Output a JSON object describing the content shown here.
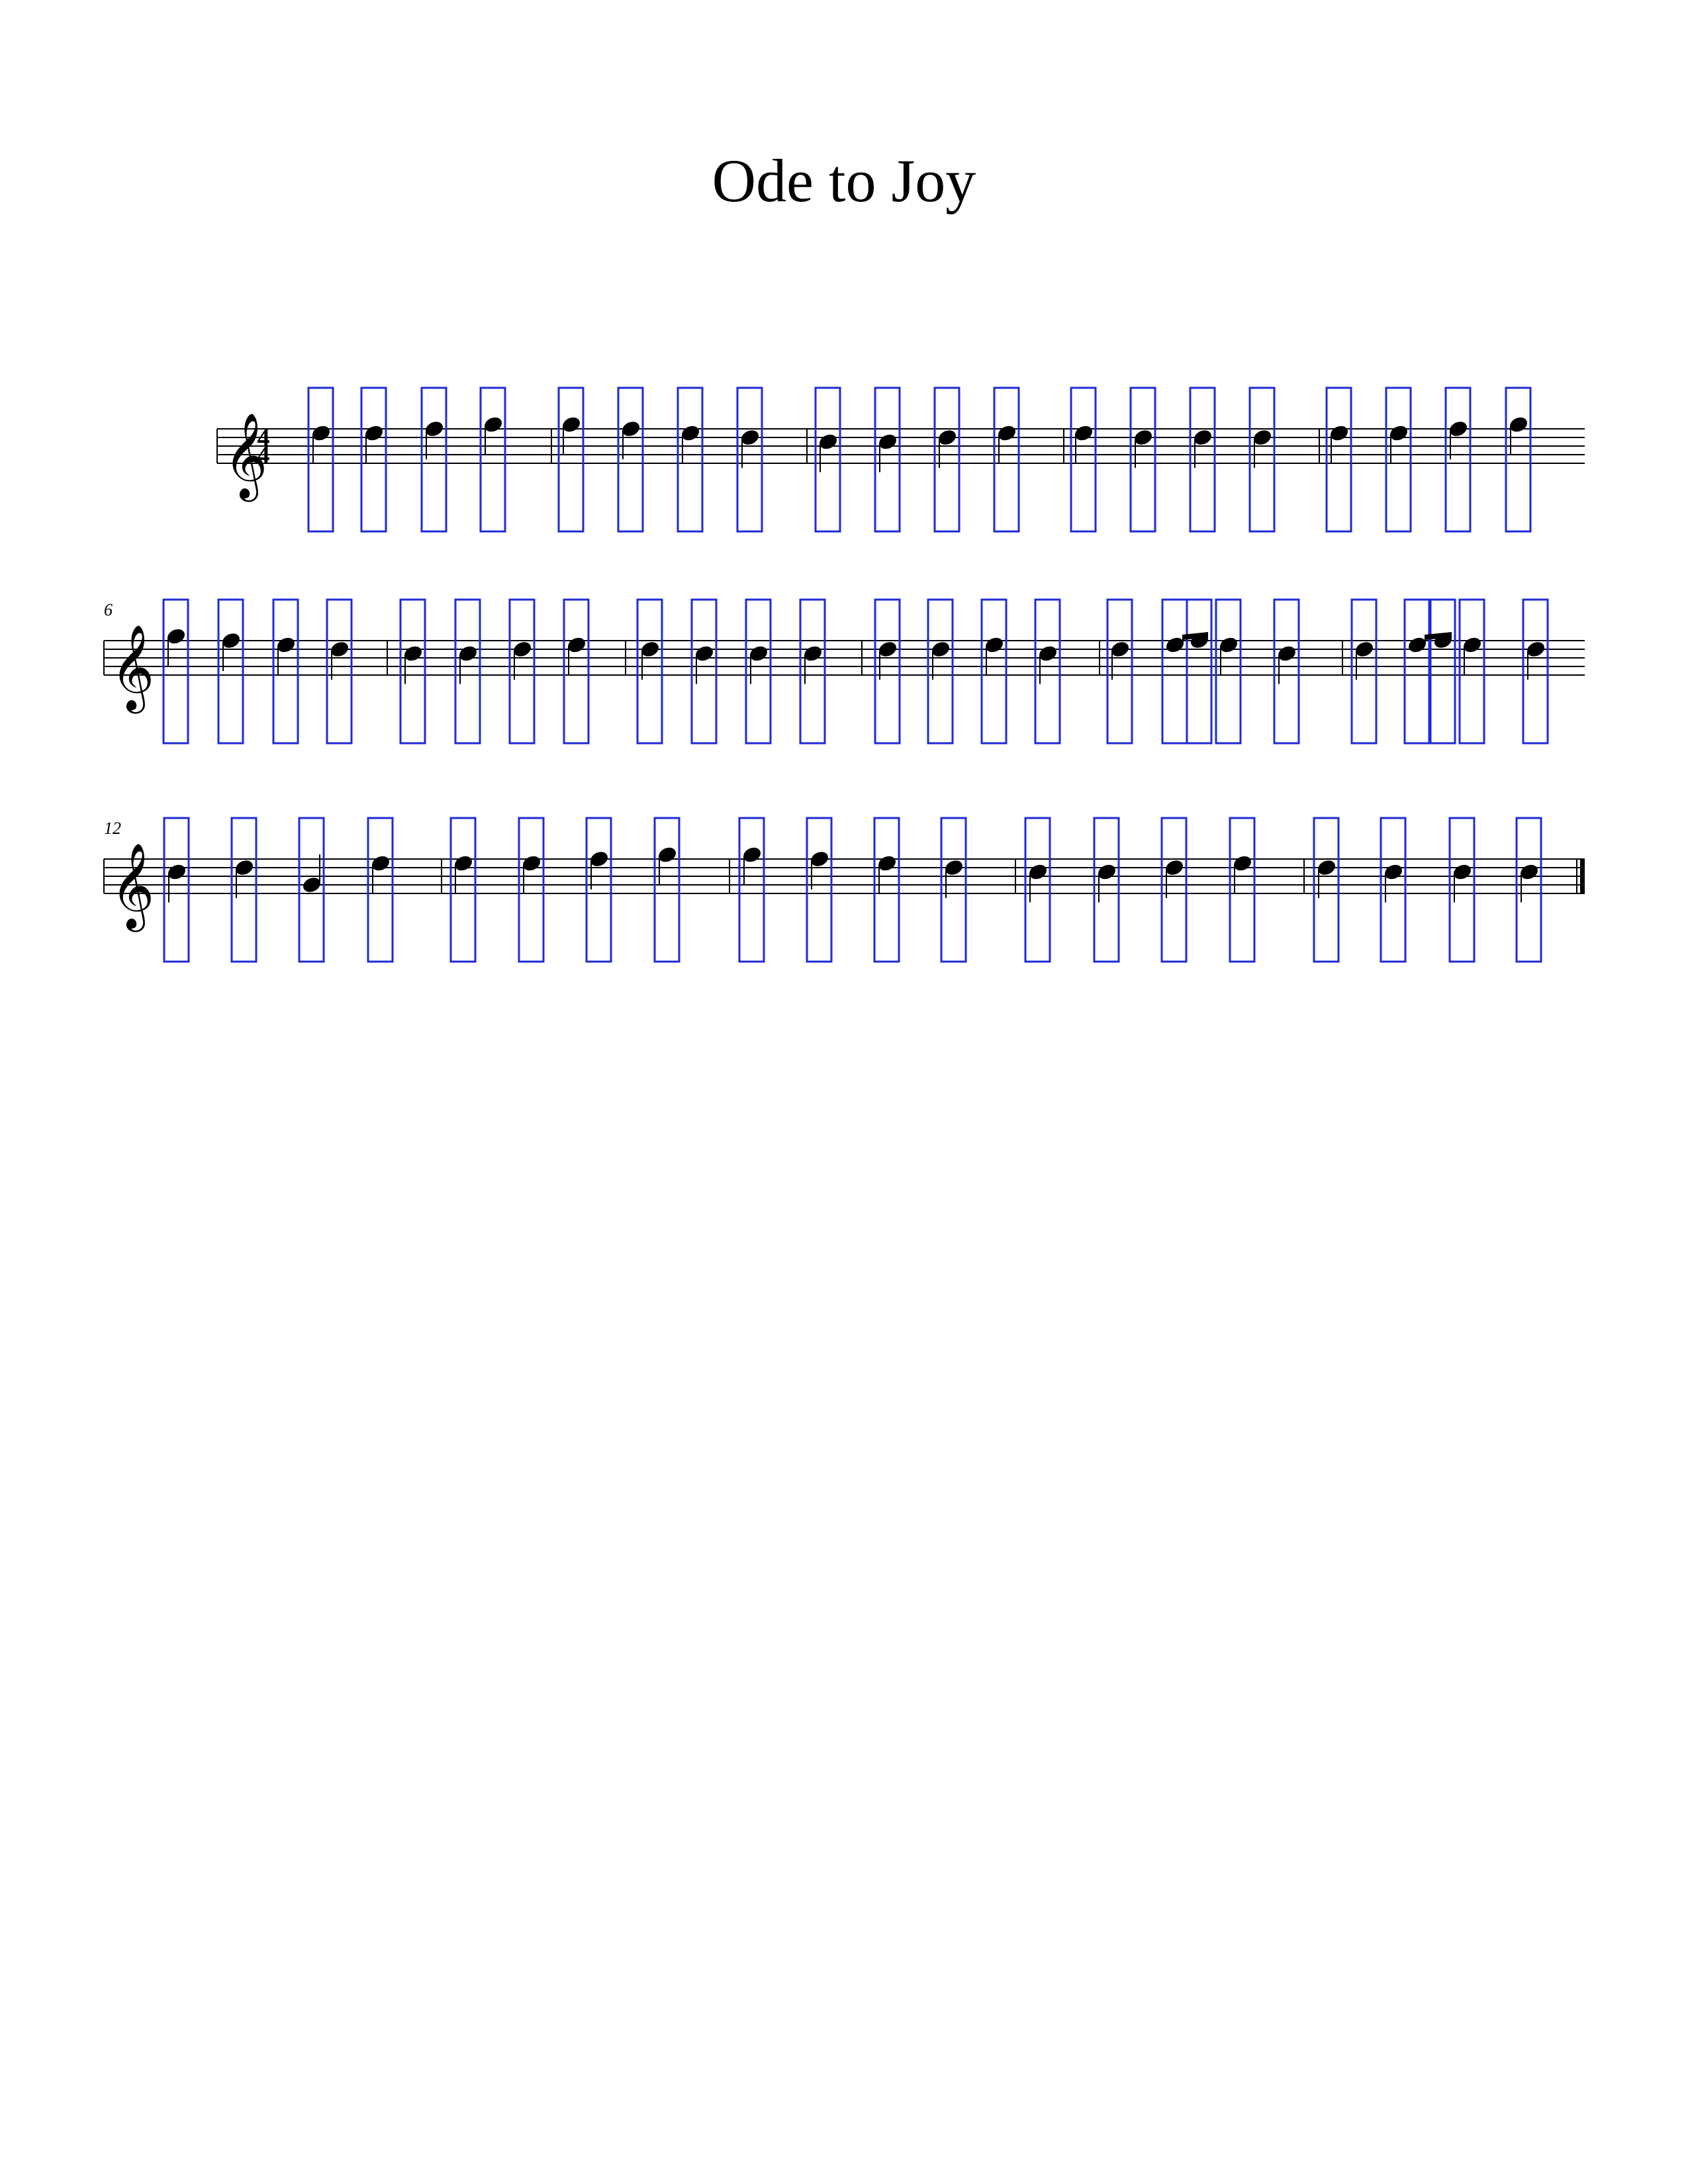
{
  "title": "Ode to Joy",
  "time_signature": {
    "top": "4",
    "bottom": "4"
  },
  "clef": "treble-clef",
  "highlight_color": "#1f2bd6",
  "systems": [
    {
      "measure_number": "",
      "notes": [
        {
          "p": "E5",
          "d": "q"
        },
        {
          "p": "E5",
          "d": "q"
        },
        {
          "p": "F5",
          "d": "q"
        },
        {
          "p": "G5",
          "d": "q"
        },
        {
          "p": "G5",
          "d": "q"
        },
        {
          "p": "F5",
          "d": "q"
        },
        {
          "p": "E5",
          "d": "q"
        },
        {
          "p": "D5",
          "d": "q"
        },
        {
          "p": "C5",
          "d": "q"
        },
        {
          "p": "C5",
          "d": "q"
        },
        {
          "p": "D5",
          "d": "q"
        },
        {
          "p": "E5",
          "d": "q"
        },
        {
          "p": "E5",
          "d": "q"
        },
        {
          "p": "D5",
          "d": "q"
        },
        {
          "p": "D5",
          "d": "q"
        },
        {
          "p": "D5",
          "d": "q"
        },
        {
          "p": "E5",
          "d": "q"
        },
        {
          "p": "E5",
          "d": "q"
        },
        {
          "p": "F5",
          "d": "q"
        },
        {
          "p": "G5",
          "d": "q"
        }
      ]
    },
    {
      "measure_number": "6",
      "notes": [
        {
          "p": "G5",
          "d": "q"
        },
        {
          "p": "F5",
          "d": "q"
        },
        {
          "p": "E5",
          "d": "q"
        },
        {
          "p": "D5",
          "d": "q"
        },
        {
          "p": "C5",
          "d": "q"
        },
        {
          "p": "C5",
          "d": "q"
        },
        {
          "p": "D5",
          "d": "q"
        },
        {
          "p": "E5",
          "d": "q"
        },
        {
          "p": "D5",
          "d": "q"
        },
        {
          "p": "C5",
          "d": "q"
        },
        {
          "p": "C5",
          "d": "q"
        },
        {
          "p": "C5",
          "d": "q"
        },
        {
          "p": "D5",
          "d": "q"
        },
        {
          "p": "D5",
          "d": "q"
        },
        {
          "p": "E5",
          "d": "q"
        },
        {
          "p": "C5",
          "d": "q"
        },
        {
          "p": "D5",
          "d": "q"
        },
        {
          "p": "E5",
          "d": "e"
        },
        {
          "p": "F5",
          "d": "e"
        },
        {
          "p": "E5",
          "d": "q"
        },
        {
          "p": "C5",
          "d": "q"
        },
        {
          "p": "D5",
          "d": "q"
        },
        {
          "p": "E5",
          "d": "e"
        },
        {
          "p": "F5",
          "d": "e"
        },
        {
          "p": "E5",
          "d": "q"
        },
        {
          "p": "D5",
          "d": "q"
        }
      ]
    },
    {
      "measure_number": "12",
      "notes": [
        {
          "p": "C5",
          "d": "q"
        },
        {
          "p": "D5",
          "d": "q"
        },
        {
          "p": "G4",
          "d": "q"
        },
        {
          "p": "E5",
          "d": "q"
        },
        {
          "p": "E5",
          "d": "q"
        },
        {
          "p": "E5",
          "d": "q"
        },
        {
          "p": "F5",
          "d": "q"
        },
        {
          "p": "G5",
          "d": "q"
        },
        {
          "p": "G5",
          "d": "q"
        },
        {
          "p": "F5",
          "d": "q"
        },
        {
          "p": "E5",
          "d": "q"
        },
        {
          "p": "D5",
          "d": "q"
        },
        {
          "p": "C5",
          "d": "q"
        },
        {
          "p": "C5",
          "d": "q"
        },
        {
          "p": "D5",
          "d": "q"
        },
        {
          "p": "E5",
          "d": "q"
        },
        {
          "p": "D5",
          "d": "q"
        },
        {
          "p": "C5",
          "d": "q"
        },
        {
          "p": "C5",
          "d": "q"
        },
        {
          "p": "C5",
          "d": "q"
        }
      ]
    }
  ]
}
